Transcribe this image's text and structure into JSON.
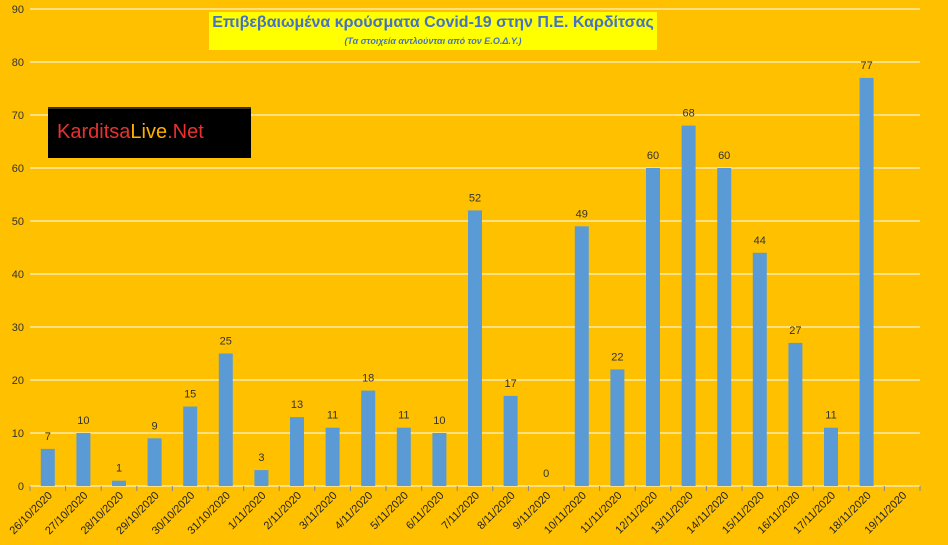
{
  "chart_data": {
    "type": "bar",
    "title": "Επιβεβαιωμένα κρούσματα Covid-19 στην Π.Ε. Καρδίτσας",
    "subtitle": "(Τα στοιχεία αντλούνται από τον Ε.Ο.Δ.Υ.)",
    "categories": [
      "26/10/2020",
      "27/10/2020",
      "28/10/2020",
      "29/10/2020",
      "30/10/2020",
      "31/10/2020",
      "1/11/2020",
      "2/11/2020",
      "3/11/2020",
      "4/11/2020",
      "5/11/2020",
      "6/11/2020",
      "7/11/2020",
      "8/11/2020",
      "9/11/2020",
      "10/11/2020",
      "11/11/2020",
      "12/11/2020",
      "13/11/2020",
      "14/11/2020",
      "15/11/2020",
      "16/11/2020",
      "17/11/2020",
      "18/11/2020",
      "19/11/2020"
    ],
    "values": [
      7,
      10,
      1,
      9,
      15,
      25,
      3,
      13,
      11,
      18,
      11,
      10,
      52,
      17,
      0,
      49,
      22,
      60,
      68,
      60,
      44,
      27,
      11,
      77,
      null
    ],
    "data_labels": [
      "7",
      "10",
      "1",
      "9",
      "15",
      "25",
      "3",
      "13",
      "11",
      "18",
      "11",
      "10",
      "52",
      "17",
      "0",
      "49",
      "22",
      "60",
      "68",
      "60",
      "44",
      "27",
      "11",
      "77",
      ""
    ],
    "ylim": [
      0,
      90
    ],
    "yticks": [
      0,
      10,
      20,
      30,
      40,
      50,
      60,
      70,
      80,
      90
    ],
    "xlabel": "",
    "ylabel": "",
    "grid": true,
    "legend": "none",
    "colors": {
      "bar": "#5B9BD5",
      "background": "#FFC000",
      "grid": "#FFFFFF",
      "title_box": "#FFFF00",
      "title_text": "#4472C4"
    }
  },
  "logo": {
    "part1": "Karditsa",
    "part2": "Live",
    "part3": ".Net"
  }
}
